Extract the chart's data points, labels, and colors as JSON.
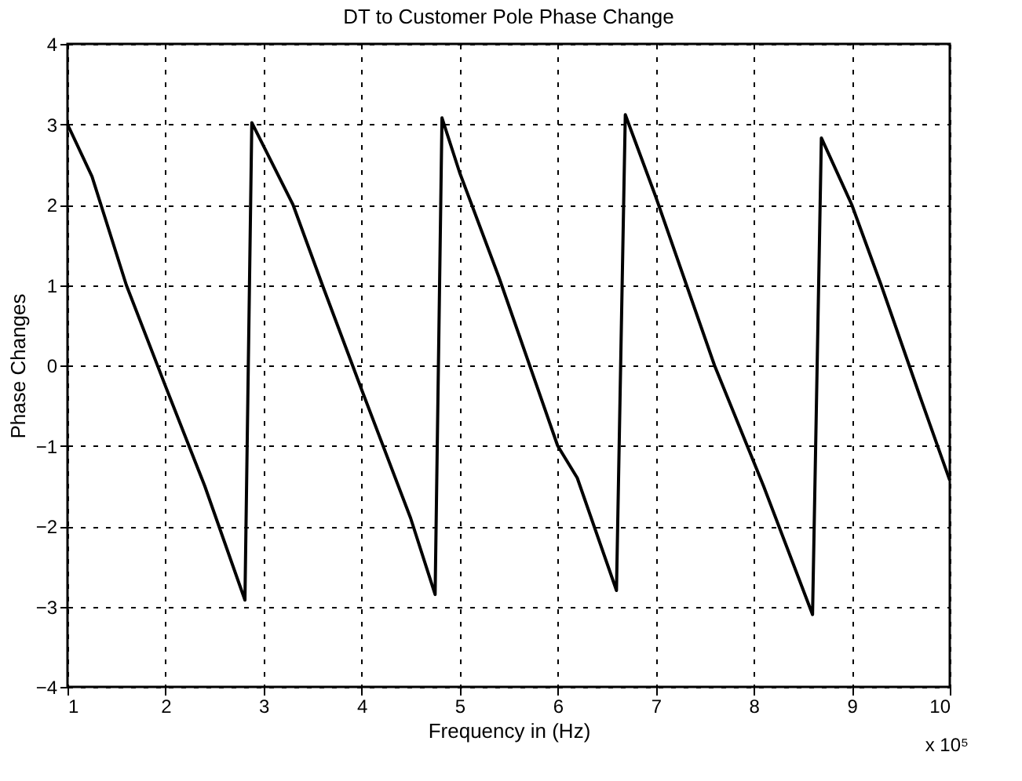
{
  "chart_data": {
    "type": "line",
    "title": "DT to Customer Pole Phase Change",
    "xlabel": "Frequency in (Hz)",
    "ylabel": "Phase Changes",
    "annotations": [
      "x 10⁵"
    ],
    "x": [
      1,
      1.25,
      1.6,
      2,
      2.4,
      2.81,
      2.88,
      3.3,
      3.6,
      4.0,
      4.5,
      4.75,
      4.82,
      5.0,
      5.4,
      6.0,
      6.2,
      6.6,
      6.69,
      7.0,
      7.6,
      8.1,
      8.6,
      8.69,
      9.0,
      9.3,
      9.7,
      10
    ],
    "series": [
      {
        "color": "#000000",
        "values": [
          3.0,
          2.35,
          1.0,
          -0.26,
          -1.5,
          -2.92,
          3.02,
          2.0,
          1.0,
          -0.3,
          -1.9,
          -2.85,
          3.08,
          2.4,
          1.1,
          -1.0,
          -1.4,
          -2.8,
          3.12,
          2.1,
          0.0,
          -1.5,
          -3.1,
          2.83,
          2.0,
          1.0,
          -0.4,
          -1.43
        ]
      }
    ],
    "xlim": [
      1,
      10
    ],
    "xticks": [
      1,
      2,
      3,
      4,
      5,
      6,
      7,
      8,
      9,
      10
    ],
    "ylim": [
      -4,
      4
    ],
    "yticks": [
      -4,
      -3,
      -2,
      -1,
      0,
      1,
      2,
      3,
      4
    ],
    "grid": true,
    "marker": "none",
    "line_style": "solid"
  }
}
